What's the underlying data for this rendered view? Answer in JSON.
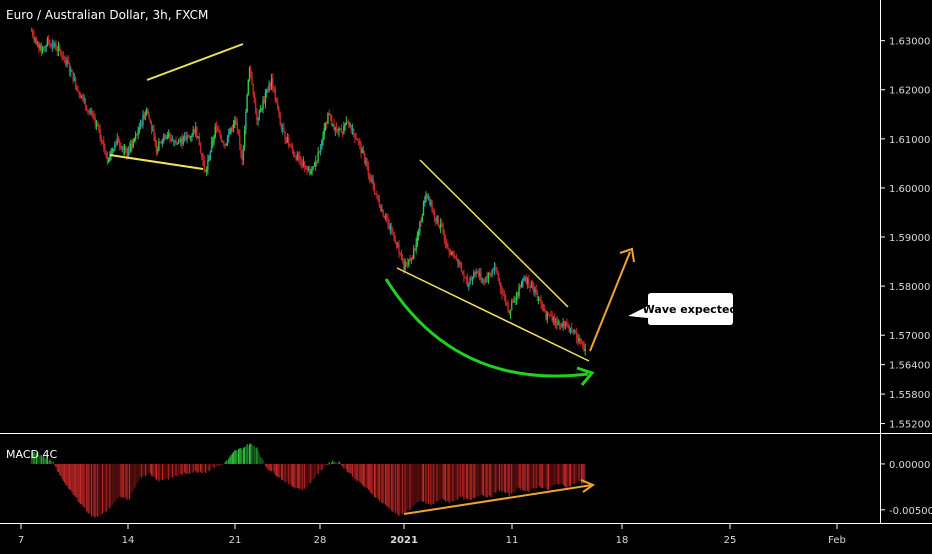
{
  "chart_data": {
    "type": "candlestick",
    "title": "Euro / Australian Dollar, 3h, FXCM",
    "price_axis": {
      "ticks": [
        1.63,
        1.62,
        1.61,
        1.6,
        1.59,
        1.58,
        1.57,
        1.564,
        1.558,
        1.552
      ],
      "tick_labels": [
        "1.63000",
        "1.62000",
        "1.61000",
        "1.60000",
        "1.59000",
        "1.58000",
        "1.57000",
        "1.56400",
        "1.55800",
        "1.55200"
      ],
      "range": [
        1.5515,
        1.634
      ]
    },
    "time_axis": {
      "labels": [
        "7",
        "14",
        "21",
        "28",
        "2021",
        "11",
        "18",
        "25",
        "Feb"
      ]
    },
    "price_path": [
      {
        "i": 0,
        "p": 1.632
      },
      {
        "i": 8,
        "p": 1.628
      },
      {
        "i": 14,
        "p": 1.63
      },
      {
        "i": 22,
        "p": 1.628
      },
      {
        "i": 30,
        "p": 1.625
      },
      {
        "i": 38,
        "p": 1.62
      },
      {
        "i": 46,
        "p": 1.616
      },
      {
        "i": 54,
        "p": 1.612
      },
      {
        "i": 62,
        "p": 1.606
      },
      {
        "i": 70,
        "p": 1.61
      },
      {
        "i": 78,
        "p": 1.607
      },
      {
        "i": 86,
        "p": 1.611
      },
      {
        "i": 94,
        "p": 1.616
      },
      {
        "i": 102,
        "p": 1.608
      },
      {
        "i": 110,
        "p": 1.611
      },
      {
        "i": 118,
        "p": 1.609
      },
      {
        "i": 126,
        "p": 1.61
      },
      {
        "i": 134,
        "p": 1.612
      },
      {
        "i": 142,
        "p": 1.603
      },
      {
        "i": 150,
        "p": 1.612
      },
      {
        "i": 158,
        "p": 1.609
      },
      {
        "i": 166,
        "p": 1.614
      },
      {
        "i": 172,
        "p": 1.606
      },
      {
        "i": 178,
        "p": 1.625
      },
      {
        "i": 184,
        "p": 1.614
      },
      {
        "i": 190,
        "p": 1.618
      },
      {
        "i": 196,
        "p": 1.622
      },
      {
        "i": 204,
        "p": 1.612
      },
      {
        "i": 214,
        "p": 1.607
      },
      {
        "i": 222,
        "p": 1.605
      },
      {
        "i": 228,
        "p": 1.603
      },
      {
        "i": 236,
        "p": 1.608
      },
      {
        "i": 242,
        "p": 1.615
      },
      {
        "i": 250,
        "p": 1.611
      },
      {
        "i": 258,
        "p": 1.613
      },
      {
        "i": 266,
        "p": 1.61
      },
      {
        "i": 274,
        "p": 1.604
      },
      {
        "i": 282,
        "p": 1.598
      },
      {
        "i": 290,
        "p": 1.593
      },
      {
        "i": 298,
        "p": 1.589
      },
      {
        "i": 304,
        "p": 1.584
      },
      {
        "i": 310,
        "p": 1.585
      },
      {
        "i": 316,
        "p": 1.591
      },
      {
        "i": 322,
        "p": 1.599
      },
      {
        "i": 328,
        "p": 1.595
      },
      {
        "i": 334,
        "p": 1.592
      },
      {
        "i": 340,
        "p": 1.588
      },
      {
        "i": 348,
        "p": 1.585
      },
      {
        "i": 356,
        "p": 1.58
      },
      {
        "i": 362,
        "p": 1.583
      },
      {
        "i": 370,
        "p": 1.581
      },
      {
        "i": 378,
        "p": 1.584
      },
      {
        "i": 384,
        "p": 1.579
      },
      {
        "i": 390,
        "p": 1.575
      },
      {
        "i": 396,
        "p": 1.578
      },
      {
        "i": 402,
        "p": 1.582
      },
      {
        "i": 408,
        "p": 1.58
      },
      {
        "i": 414,
        "p": 1.577
      },
      {
        "i": 420,
        "p": 1.574
      },
      {
        "i": 428,
        "p": 1.573
      },
      {
        "i": 436,
        "p": 1.572
      },
      {
        "i": 444,
        "p": 1.57
      },
      {
        "i": 452,
        "p": 1.5665
      }
    ],
    "candle_colors": {
      "up": "#26a69a",
      "up_bright": "#2ecc40",
      "down": "#c62828"
    },
    "indicator": {
      "name": "MACD 4C",
      "ticks": [
        0.0,
        -0.005
      ],
      "tick_labels": [
        "0.00000",
        "-0.00500"
      ],
      "range": [
        -0.006,
        0.0025
      ],
      "hist_path": [
        {
          "i": 0,
          "v": 0.0015
        },
        {
          "i": 10,
          "v": 0.0008
        },
        {
          "i": 18,
          "v": 0.0001
        },
        {
          "i": 22,
          "v": -0.001
        },
        {
          "i": 32,
          "v": -0.003
        },
        {
          "i": 42,
          "v": -0.0046
        },
        {
          "i": 50,
          "v": -0.0058
        },
        {
          "i": 58,
          "v": -0.0055
        },
        {
          "i": 66,
          "v": -0.0045
        },
        {
          "i": 72,
          "v": -0.0035
        },
        {
          "i": 80,
          "v": -0.004
        },
        {
          "i": 88,
          "v": -0.0015
        },
        {
          "i": 96,
          "v": -0.001
        },
        {
          "i": 104,
          "v": -0.0018
        },
        {
          "i": 112,
          "v": -0.0016
        },
        {
          "i": 120,
          "v": -0.0012
        },
        {
          "i": 128,
          "v": -0.001
        },
        {
          "i": 134,
          "v": -0.0008
        },
        {
          "i": 142,
          "v": -0.0009
        },
        {
          "i": 150,
          "v": -0.0003
        },
        {
          "i": 156,
          "v": -0.0001
        },
        {
          "i": 160,
          "v": 0.0004
        },
        {
          "i": 166,
          "v": 0.0014
        },
        {
          "i": 172,
          "v": 0.0017
        },
        {
          "i": 178,
          "v": 0.0022
        },
        {
          "i": 184,
          "v": 0.0018
        },
        {
          "i": 188,
          "v": 0.0006
        },
        {
          "i": 192,
          "v": -0.0004
        },
        {
          "i": 198,
          "v": -0.001
        },
        {
          "i": 206,
          "v": -0.0018
        },
        {
          "i": 214,
          "v": -0.0025
        },
        {
          "i": 222,
          "v": -0.0028
        },
        {
          "i": 228,
          "v": -0.002
        },
        {
          "i": 234,
          "v": -0.001
        },
        {
          "i": 240,
          "v": -0.0002
        },
        {
          "i": 246,
          "v": 0.0003
        },
        {
          "i": 252,
          "v": 0.0001
        },
        {
          "i": 258,
          "v": -0.0008
        },
        {
          "i": 266,
          "v": -0.0018
        },
        {
          "i": 276,
          "v": -0.003
        },
        {
          "i": 286,
          "v": -0.0042
        },
        {
          "i": 294,
          "v": -0.005
        },
        {
          "i": 300,
          "v": -0.0056
        },
        {
          "i": 306,
          "v": -0.0052
        },
        {
          "i": 312,
          "v": -0.0046
        },
        {
          "i": 318,
          "v": -0.004
        },
        {
          "i": 326,
          "v": -0.0045
        },
        {
          "i": 334,
          "v": -0.0038
        },
        {
          "i": 342,
          "v": -0.0042
        },
        {
          "i": 350,
          "v": -0.0036
        },
        {
          "i": 358,
          "v": -0.004
        },
        {
          "i": 366,
          "v": -0.0033
        },
        {
          "i": 374,
          "v": -0.0036
        },
        {
          "i": 382,
          "v": -0.0028
        },
        {
          "i": 390,
          "v": -0.0034
        },
        {
          "i": 398,
          "v": -0.0026
        },
        {
          "i": 406,
          "v": -0.003
        },
        {
          "i": 414,
          "v": -0.0024
        },
        {
          "i": 422,
          "v": -0.0028
        },
        {
          "i": 430,
          "v": -0.0021
        },
        {
          "i": 438,
          "v": -0.0025
        },
        {
          "i": 446,
          "v": -0.0019
        },
        {
          "i": 452,
          "v": -0.0022
        }
      ],
      "colors": {
        "above_rising": "#2ecc40",
        "above_falling": "#1b5e20",
        "below_falling": "#c62828",
        "below_rising": "#5d0f0f"
      }
    },
    "annotations": {
      "note_text": "Wave expected",
      "colors": {
        "pattern_lines": "#f2e35b",
        "green_arc": "#22d11f",
        "orange_arrow": "#f0a233",
        "note_bg": "#ffffff"
      }
    },
    "grid": false,
    "legend": "none"
  }
}
